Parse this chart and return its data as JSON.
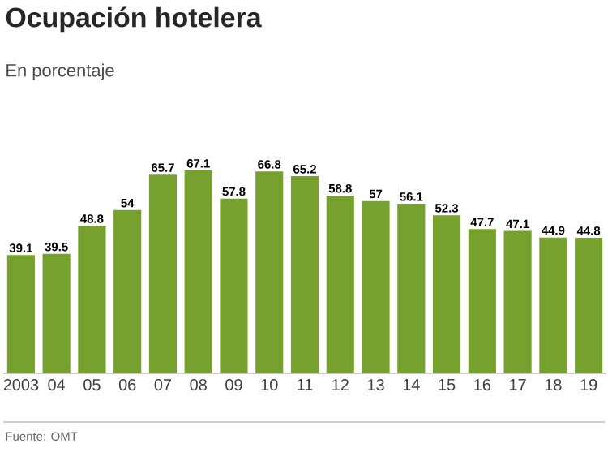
{
  "chart_data": {
    "type": "bar",
    "title": "Ocupación hotelera",
    "subtitle": "En porcentaje",
    "categories": [
      "2003",
      "04",
      "05",
      "06",
      "07",
      "08",
      "09",
      "10",
      "11",
      "12",
      "13",
      "14",
      "15",
      "16",
      "17",
      "18",
      "19"
    ],
    "values": [
      39.1,
      39.5,
      48.8,
      54,
      65.7,
      67.1,
      57.8,
      66.8,
      65.2,
      58.8,
      57,
      56.1,
      52.3,
      47.7,
      47.1,
      44.9,
      44.8
    ],
    "value_labels": [
      "39.1",
      "39.5",
      "48.8",
      "54",
      "65.7",
      "67.1",
      "57.8",
      "66.8",
      "65.2",
      "58.8",
      "57",
      "56.1",
      "52.3",
      "47.7",
      "47.1",
      "44.9",
      "44.8"
    ],
    "color": "#76a12e",
    "tick_labels": "x",
    "grid": false,
    "annotations": [
      "Fuente: OMT"
    ]
  }
}
